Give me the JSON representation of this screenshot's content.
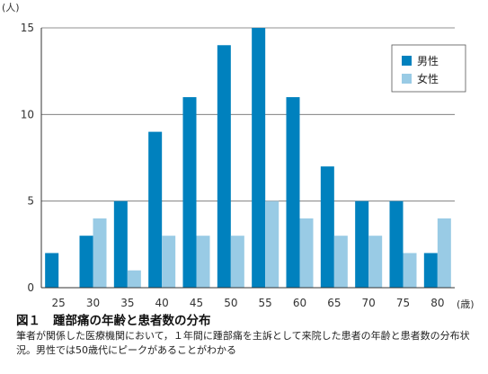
{
  "chart_data": {
    "type": "bar",
    "categories": [
      "25",
      "30",
      "35",
      "40",
      "45",
      "50",
      "55",
      "60",
      "65",
      "70",
      "75",
      "80"
    ],
    "series": [
      {
        "name": "男性",
        "color": "#0081be",
        "values": [
          2,
          3,
          5,
          9,
          11,
          14,
          15,
          11,
          7,
          5,
          5,
          2
        ]
      },
      {
        "name": "女性",
        "color": "#99cbe5",
        "values": [
          0,
          4,
          1,
          3,
          3,
          3,
          5,
          4,
          3,
          3,
          2,
          4
        ]
      }
    ],
    "ylim": [
      0,
      15
    ],
    "yticks": [
      0,
      5,
      10,
      15
    ],
    "ylabel": "(人)",
    "xlabel": "(歳)",
    "grid": true,
    "legend_position": "top-right"
  },
  "figure": {
    "number": "図１",
    "title": "踵部痛の年齢と患者数の分布",
    "description": "筆者が関係した医療機関において，１年間に踵部痛を主訴として来院した患者の年齢と患者数の分布状況。男性では50歳代にピークがあることがわかる"
  }
}
